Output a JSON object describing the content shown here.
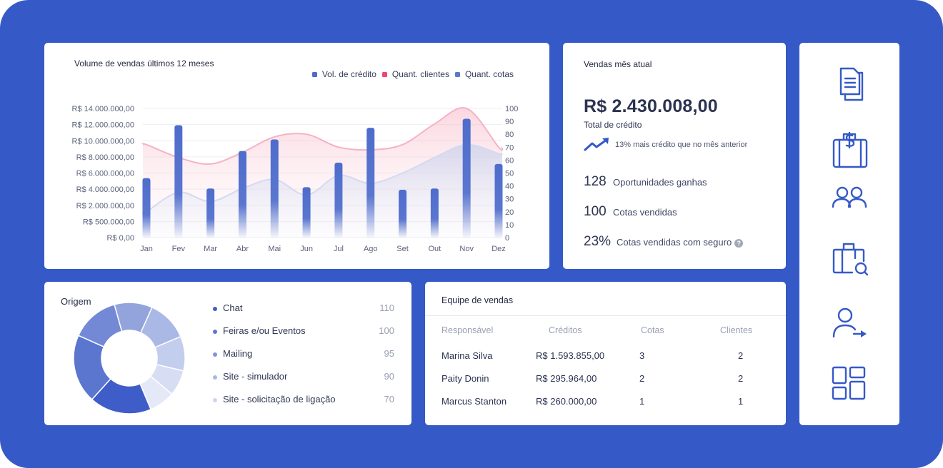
{
  "chart": {
    "title": "Volume de vendas últimos 12 meses",
    "legend": [
      {
        "label": "Vol. de crédito",
        "color": "#4e6ccc"
      },
      {
        "label": "Quant. clientes",
        "color": "#f0466e"
      },
      {
        "label": "Quant. cotas",
        "color": "#5b78cf"
      }
    ]
  },
  "chart_data": {
    "type": "bar",
    "title": "Volume de vendas últimos 12 meses",
    "categories": [
      "Jan",
      "Fev",
      "Mar",
      "Abr",
      "Mai",
      "Jun",
      "Jul",
      "Ago",
      "Set",
      "Out",
      "Nov",
      "Dez"
    ],
    "left_ticks": [
      "R$ 14.000.000,00",
      "R$ 12.000.000,00",
      "R$ 10.000.000,00",
      "R$ 8.000.000,00",
      "R$ 6.000.000,00",
      "R$ 4.000.000,00",
      "R$ 2.000.000,00",
      "R$ 500.000,00",
      "R$ 0,00"
    ],
    "right_ticks": [
      "100",
      "90",
      "80",
      "70",
      "60",
      "50",
      "40",
      "30",
      "20",
      "10",
      "0"
    ],
    "right_ylim": [
      0,
      100
    ],
    "series": [
      {
        "name": "Vol. de crédito",
        "axis": "right",
        "type": "bar",
        "values": [
          46,
          87,
          38,
          67,
          76,
          39,
          58,
          85,
          37,
          38,
          92,
          57
        ]
      },
      {
        "name": "Quant. clientes",
        "axis": "right",
        "type": "area",
        "values": [
          72,
          62,
          57,
          66,
          78,
          80,
          70,
          68,
          72,
          88,
          100,
          70
        ]
      },
      {
        "name": "Quant. cotas",
        "axis": "right",
        "type": "area",
        "values": [
          20,
          35,
          28,
          38,
          45,
          33,
          48,
          42,
          50,
          62,
          72,
          65
        ]
      }
    ],
    "grid": true,
    "legend_position": "top-right"
  },
  "sales": {
    "title": "Vendas mês atual",
    "amount": "R$ 2.430.008,00",
    "amount_label": "Total de crédito",
    "trend_text": "13% mais crédito que no mês anterior",
    "stats": [
      {
        "value": "128",
        "label": "Oportunidades ganhas"
      },
      {
        "value": "100",
        "label": "Cotas vendidas"
      },
      {
        "value": "23%",
        "label": "Cotas vendidas com seguro"
      }
    ],
    "help_glyph": "?"
  },
  "sidebar": {
    "items": [
      {
        "icon": "documents-icon"
      },
      {
        "icon": "money-bag-icon"
      },
      {
        "icon": "users-icon"
      },
      {
        "icon": "briefcase-search-icon"
      },
      {
        "icon": "user-transfer-icon"
      },
      {
        "icon": "dashboard-grid-icon"
      }
    ],
    "accent": "#3559c7"
  },
  "origin": {
    "title": "Origem",
    "items": [
      {
        "label": "Chat",
        "value": "110",
        "color": "#3e5dc9"
      },
      {
        "label": "Feiras e/ou Eventos",
        "value": "100",
        "color": "#5b76cf"
      },
      {
        "label": "Mailing",
        "value": "95",
        "color": "#8195d9"
      },
      {
        "label": "Site - simulador",
        "value": "90",
        "color": "#aab8e6"
      },
      {
        "label": "Site - solicitação de ligação",
        "value": "70",
        "color": "#ccd4f0"
      }
    ]
  },
  "team": {
    "title": "Equipe de vendas",
    "columns": [
      "Responsável",
      "Créditos",
      "Cotas",
      "Clientes"
    ],
    "rows": [
      {
        "name": "Marina Silva",
        "credits": "R$ 1.593.855,00",
        "quotas": "3",
        "clients": "2"
      },
      {
        "name": "Paity Donin",
        "credits": "R$ 295.964,00",
        "quotas": "2",
        "clients": "2"
      },
      {
        "name": "Marcus Stanton",
        "credits": "R$ 260.000,00",
        "quotas": "1",
        "clients": "1"
      }
    ]
  }
}
